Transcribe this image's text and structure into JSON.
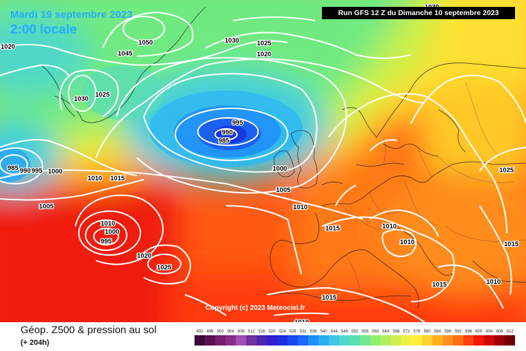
{
  "header": {
    "date": "Mardi 19 septembre 2023",
    "local_time": "2:00 locale",
    "run": "Run GFS 12 Z du Dimanche 10 septembre 2023"
  },
  "copyright": "Copyright (c) 2023 Meteociel.fr",
  "footer": {
    "product": "Géop. Z500 & pression au sol",
    "lead": "(+ 204h)"
  },
  "scale_labels": [
    "492",
    "496",
    "500",
    "504",
    "508",
    "512",
    "516",
    "520",
    "524",
    "528",
    "532",
    "536",
    "540",
    "544",
    "548",
    "552",
    "556",
    "560",
    "564",
    "568",
    "572",
    "576",
    "580",
    "584",
    "588",
    "592",
    "596",
    "600",
    "604",
    "608",
    "612"
  ],
  "scale_colors": [
    "#3a0a3a",
    "#5a1050",
    "#7a1c6c",
    "#8c2a88",
    "#a050b4",
    "#7030a0",
    "#5024b4",
    "#3020d0",
    "#1a30e0",
    "#1848f0",
    "#1c68f8",
    "#2090f8",
    "#28b0f0",
    "#40c8e8",
    "#50d8d0",
    "#58e0b0",
    "#70e890",
    "#90f070",
    "#b0f060",
    "#d0f050",
    "#f0f040",
    "#fff040",
    "#ffd030",
    "#ffb020",
    "#ff9020",
    "#ff7010",
    "#ff4010",
    "#f01808",
    "#d00808",
    "#a00000",
    "#700000"
  ],
  "isobars": [
    {
      "text": "1020"
    },
    {
      "text": "1050"
    },
    {
      "text": "1045"
    },
    {
      "text": "1030"
    },
    {
      "text": "1025"
    },
    {
      "text": "1020"
    },
    {
      "text": "1030"
    },
    {
      "text": "1025"
    },
    {
      "text": "995"
    },
    {
      "text": "990"
    },
    {
      "text": "985"
    },
    {
      "text": "985"
    },
    {
      "text": "990"
    },
    {
      "text": "995"
    },
    {
      "text": "1000"
    },
    {
      "text": "1010"
    },
    {
      "text": "1015"
    },
    {
      "text": "1005"
    },
    {
      "text": "1000"
    },
    {
      "text": "1005"
    },
    {
      "text": "1010"
    },
    {
      "text": "1015"
    },
    {
      "text": "1010"
    },
    {
      "text": "1010"
    },
    {
      "text": "1025"
    },
    {
      "text": "1015"
    },
    {
      "text": "1010"
    },
    {
      "text": "1015"
    },
    {
      "text": "1015"
    },
    {
      "text": "1010"
    },
    {
      "text": "1010"
    },
    {
      "text": "1000"
    },
    {
      "text": "995"
    },
    {
      "text": "1020"
    },
    {
      "text": "1025"
    },
    {
      "text": "1030"
    }
  ]
}
